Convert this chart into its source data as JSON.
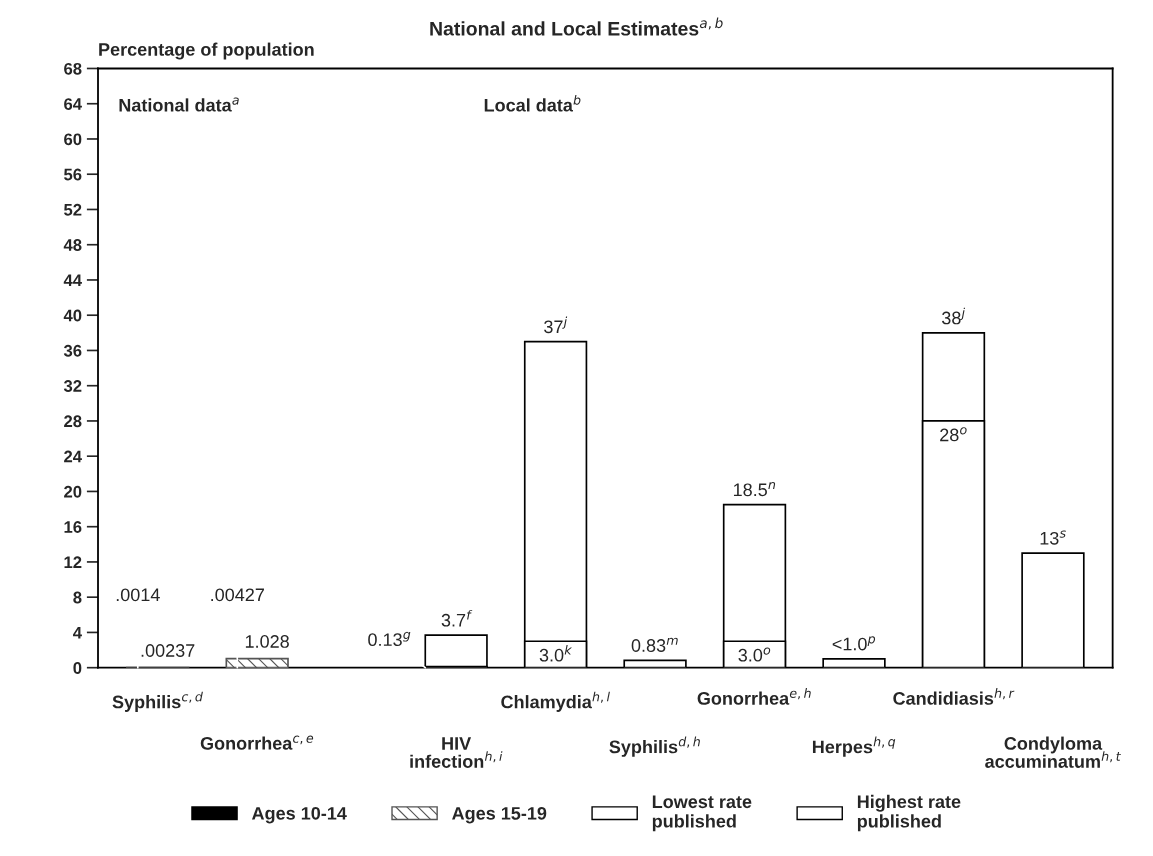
{
  "chart_data": {
    "type": "bar",
    "title": "National and Local Estimates$^{a,b}$",
    "ylabel": "Percentage of population",
    "categories": [
      "Syphilis$^{c,d}$",
      "Gonorrhea$^{c,e}$",
      null,
      "HIV\ninfection$^{h,i}$",
      "Chlamydia$^{h,l}$",
      "Syphilis$^{d,h}$",
      "Gonorrhea$^{e,h}$",
      "Herpes$^{h,q}$",
      "Candidiasis$^{h,r}$",
      "Condyloma\naccuminatum$^{h,t}$"
    ],
    "series": [
      {
        "name": "Ages 10-14",
        "color": "#000000",
        "values": [
          0.0014,
          0.00427,
          null,
          null,
          null,
          null,
          null,
          null,
          null,
          null
        ],
        "value_labels": [
          ".0014",
          ".00427",
          null,
          null,
          null,
          null,
          null,
          null,
          null,
          null
        ]
      },
      {
        "name": "Ages 15-19",
        "color": "#555555",
        "values": [
          0.00237,
          1.028,
          null,
          null,
          null,
          null,
          null,
          null,
          null,
          null
        ],
        "value_labels": [
          ".00237",
          "1.028",
          null,
          null,
          null,
          null,
          null,
          null,
          null,
          null
        ]
      },
      {
        "name": "Lowest rate\npublished",
        "color": "#ffffff",
        "values": [
          null,
          null,
          null,
          0.13,
          3.0,
          null,
          3.0,
          null,
          28,
          null
        ],
        "value_labels": [
          null,
          null,
          null,
          "0.13$^{g}$",
          "3.0$^{k}$",
          null,
          "3.0$^{o}$",
          null,
          "28$^{o}$",
          null
        ]
      },
      {
        "name": "Highest rate\npublished",
        "color": "#ffffff",
        "values": [
          null,
          null,
          null,
          3.7,
          37,
          0.83,
          18.5,
          1.0,
          38,
          13
        ],
        "value_labels": [
          null,
          null,
          null,
          "3.7$^{f}$",
          "37$^{j}$",
          "0.83$^{m}$",
          "18.5$^{n}$",
          "<1.0$^{p}$",
          "38$^{j}$",
          "13$^{s}$"
        ]
      }
    ],
    "ylim": [
      0,
      68
    ],
    "yticks": [
      0,
      4,
      8,
      12,
      16,
      20,
      24,
      28,
      32,
      36,
      40,
      44,
      48,
      52,
      56,
      60,
      64,
      68
    ],
    "annotations": [
      "National data$^{a}$",
      "Local data$^{b}$"
    ],
    "grid": false,
    "legend": "bottom"
  }
}
